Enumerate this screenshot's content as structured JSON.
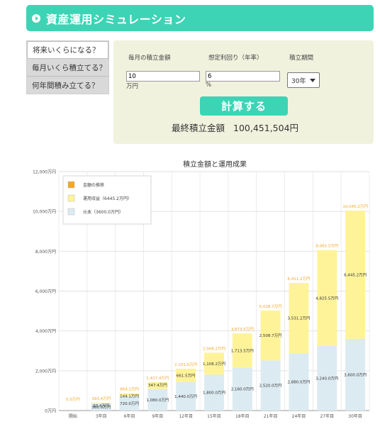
{
  "header": {
    "title": "資産運用シミュレーション"
  },
  "tabs": [
    {
      "label": "将来いくらになる？",
      "active": true
    },
    {
      "label": "毎月いくら積立てる？",
      "active": false
    },
    {
      "label": "何年間積み立てる？",
      "active": false
    }
  ],
  "form": {
    "monthly_label": "毎月の積立金額",
    "monthly_value": "10",
    "monthly_unit": "万円",
    "rate_label": "想定利回り（年率）",
    "rate_value": "6",
    "rate_unit": "%",
    "period_label": "積立期間",
    "period_value": "30年",
    "calc_button": "計算する",
    "result_label": "最終積立金額",
    "result_value": "100,451,504円"
  },
  "colors": {
    "accent": "#3dd4b5",
    "principal": "#dcebf2",
    "gain": "#fff39a",
    "total_label": "#f5a623"
  },
  "chart_data": {
    "type": "bar",
    "title": "積立金額と運用成果",
    "categories": [
      "開始",
      "3年目",
      "6年目",
      "9年目",
      "12年目",
      "15年目",
      "18年目",
      "21年目",
      "24年目",
      "27年目",
      "30年目"
    ],
    "ylim": [
      0,
      12000
    ],
    "yticks": [
      "0万円",
      "2,000万円",
      "4,000万円",
      "6,000万円",
      "8,000万円",
      "10,000万円",
      "12,000万円"
    ],
    "legend": [
      {
        "label": "金額の推移",
        "color": "#f5a623"
      },
      {
        "label": "運用収益（6445.2万円）",
        "color": "#fff39a"
      },
      {
        "label": "元本（3600.0万円）",
        "color": "#dcebf2"
      }
    ],
    "series": [
      {
        "name": "元本（3600.0万円）",
        "values": [
          0,
          360,
          720,
          1080,
          1440,
          1800,
          2160,
          2520,
          2880,
          3240,
          3600
        ],
        "labels": [
          "",
          "360.0万円",
          "720.0万円",
          "1,080.0万円",
          "1,440.0万円",
          "1,800.0万円",
          "2,160.0万円",
          "2,520.0万円",
          "2,880.0万円",
          "3,240.0万円",
          "3,600.0万円"
        ]
      },
      {
        "name": "運用収益（6445.2万円）",
        "values": [
          0,
          33.4,
          144.1,
          347.4,
          661.5,
          1108.2,
          1713.5,
          2508.7,
          3531.2,
          4825.5,
          6445.2
        ],
        "labels": [
          "",
          "33.4万円",
          "144.1万円",
          "347.4万円",
          "661.5万円",
          "1,108.2万円",
          "1,713.5万円",
          "2,508.7万円",
          "3,531.2万円",
          "4,825.5万円",
          "6,445.2万円"
        ]
      }
    ],
    "totals": {
      "values": [
        0,
        393.4,
        864.1,
        1427.4,
        2101.5,
        2908.2,
        3873.5,
        5028.7,
        6411.2,
        8065.5,
        10045.2
      ],
      "labels": [
        "0.0万円",
        "393.4万円",
        "864.1万円",
        "1,427.4万円",
        "2,101.5万円",
        "2,908.2万円",
        "3,873.5万円",
        "5,028.7万円",
        "6,411.2万円",
        "8,065.5万円",
        "10,045.2万円"
      ]
    }
  }
}
